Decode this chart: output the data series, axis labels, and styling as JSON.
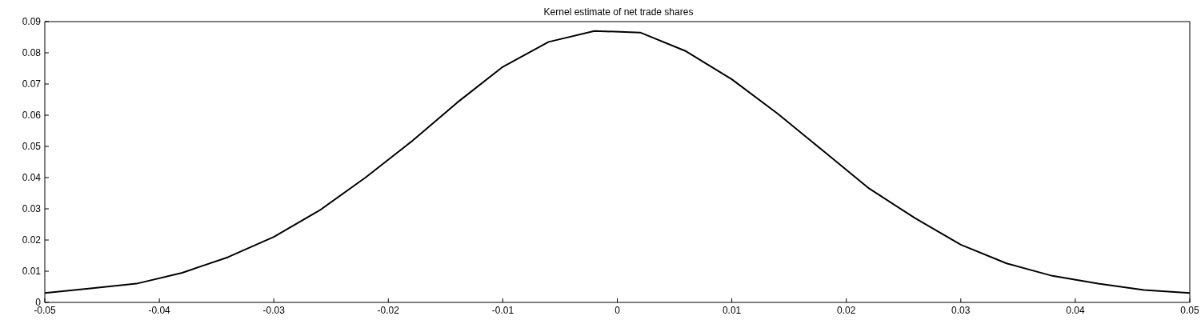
{
  "chart_data": {
    "type": "line",
    "title": "Kernel estimate of net trade shares",
    "x": [
      -0.05,
      -0.046,
      -0.042,
      -0.038,
      -0.034,
      -0.03,
      -0.026,
      -0.022,
      -0.018,
      -0.014,
      -0.01,
      -0.006,
      -0.002,
      0.002,
      0.006,
      0.01,
      0.014,
      0.018,
      0.022,
      0.026,
      0.03,
      0.034,
      0.038,
      0.042,
      0.046,
      0.05
    ],
    "series": [
      {
        "color": "#000000",
        "values": [
          0.003,
          0.0045,
          0.006,
          0.0095,
          0.0145,
          0.021,
          0.0295,
          0.04,
          0.0515,
          0.064,
          0.0755,
          0.0835,
          0.087,
          0.0865,
          0.0805,
          0.0715,
          0.0605,
          0.0485,
          0.0365,
          0.027,
          0.0185,
          0.0125,
          0.0085,
          0.006,
          0.004,
          0.003
        ]
      }
    ],
    "xlim": [
      -0.05,
      0.05
    ],
    "xticks": [
      -0.05,
      -0.04,
      -0.03,
      -0.02,
      -0.01,
      0,
      0.01,
      0.02,
      0.03,
      0.04,
      0.05
    ],
    "ylim": [
      0,
      0.09
    ],
    "yticks": [
      0,
      0.01,
      0.02,
      0.03,
      0.04,
      0.05,
      0.06,
      0.07,
      0.08,
      0.09
    ],
    "marker": "none",
    "line_style": "solid"
  }
}
